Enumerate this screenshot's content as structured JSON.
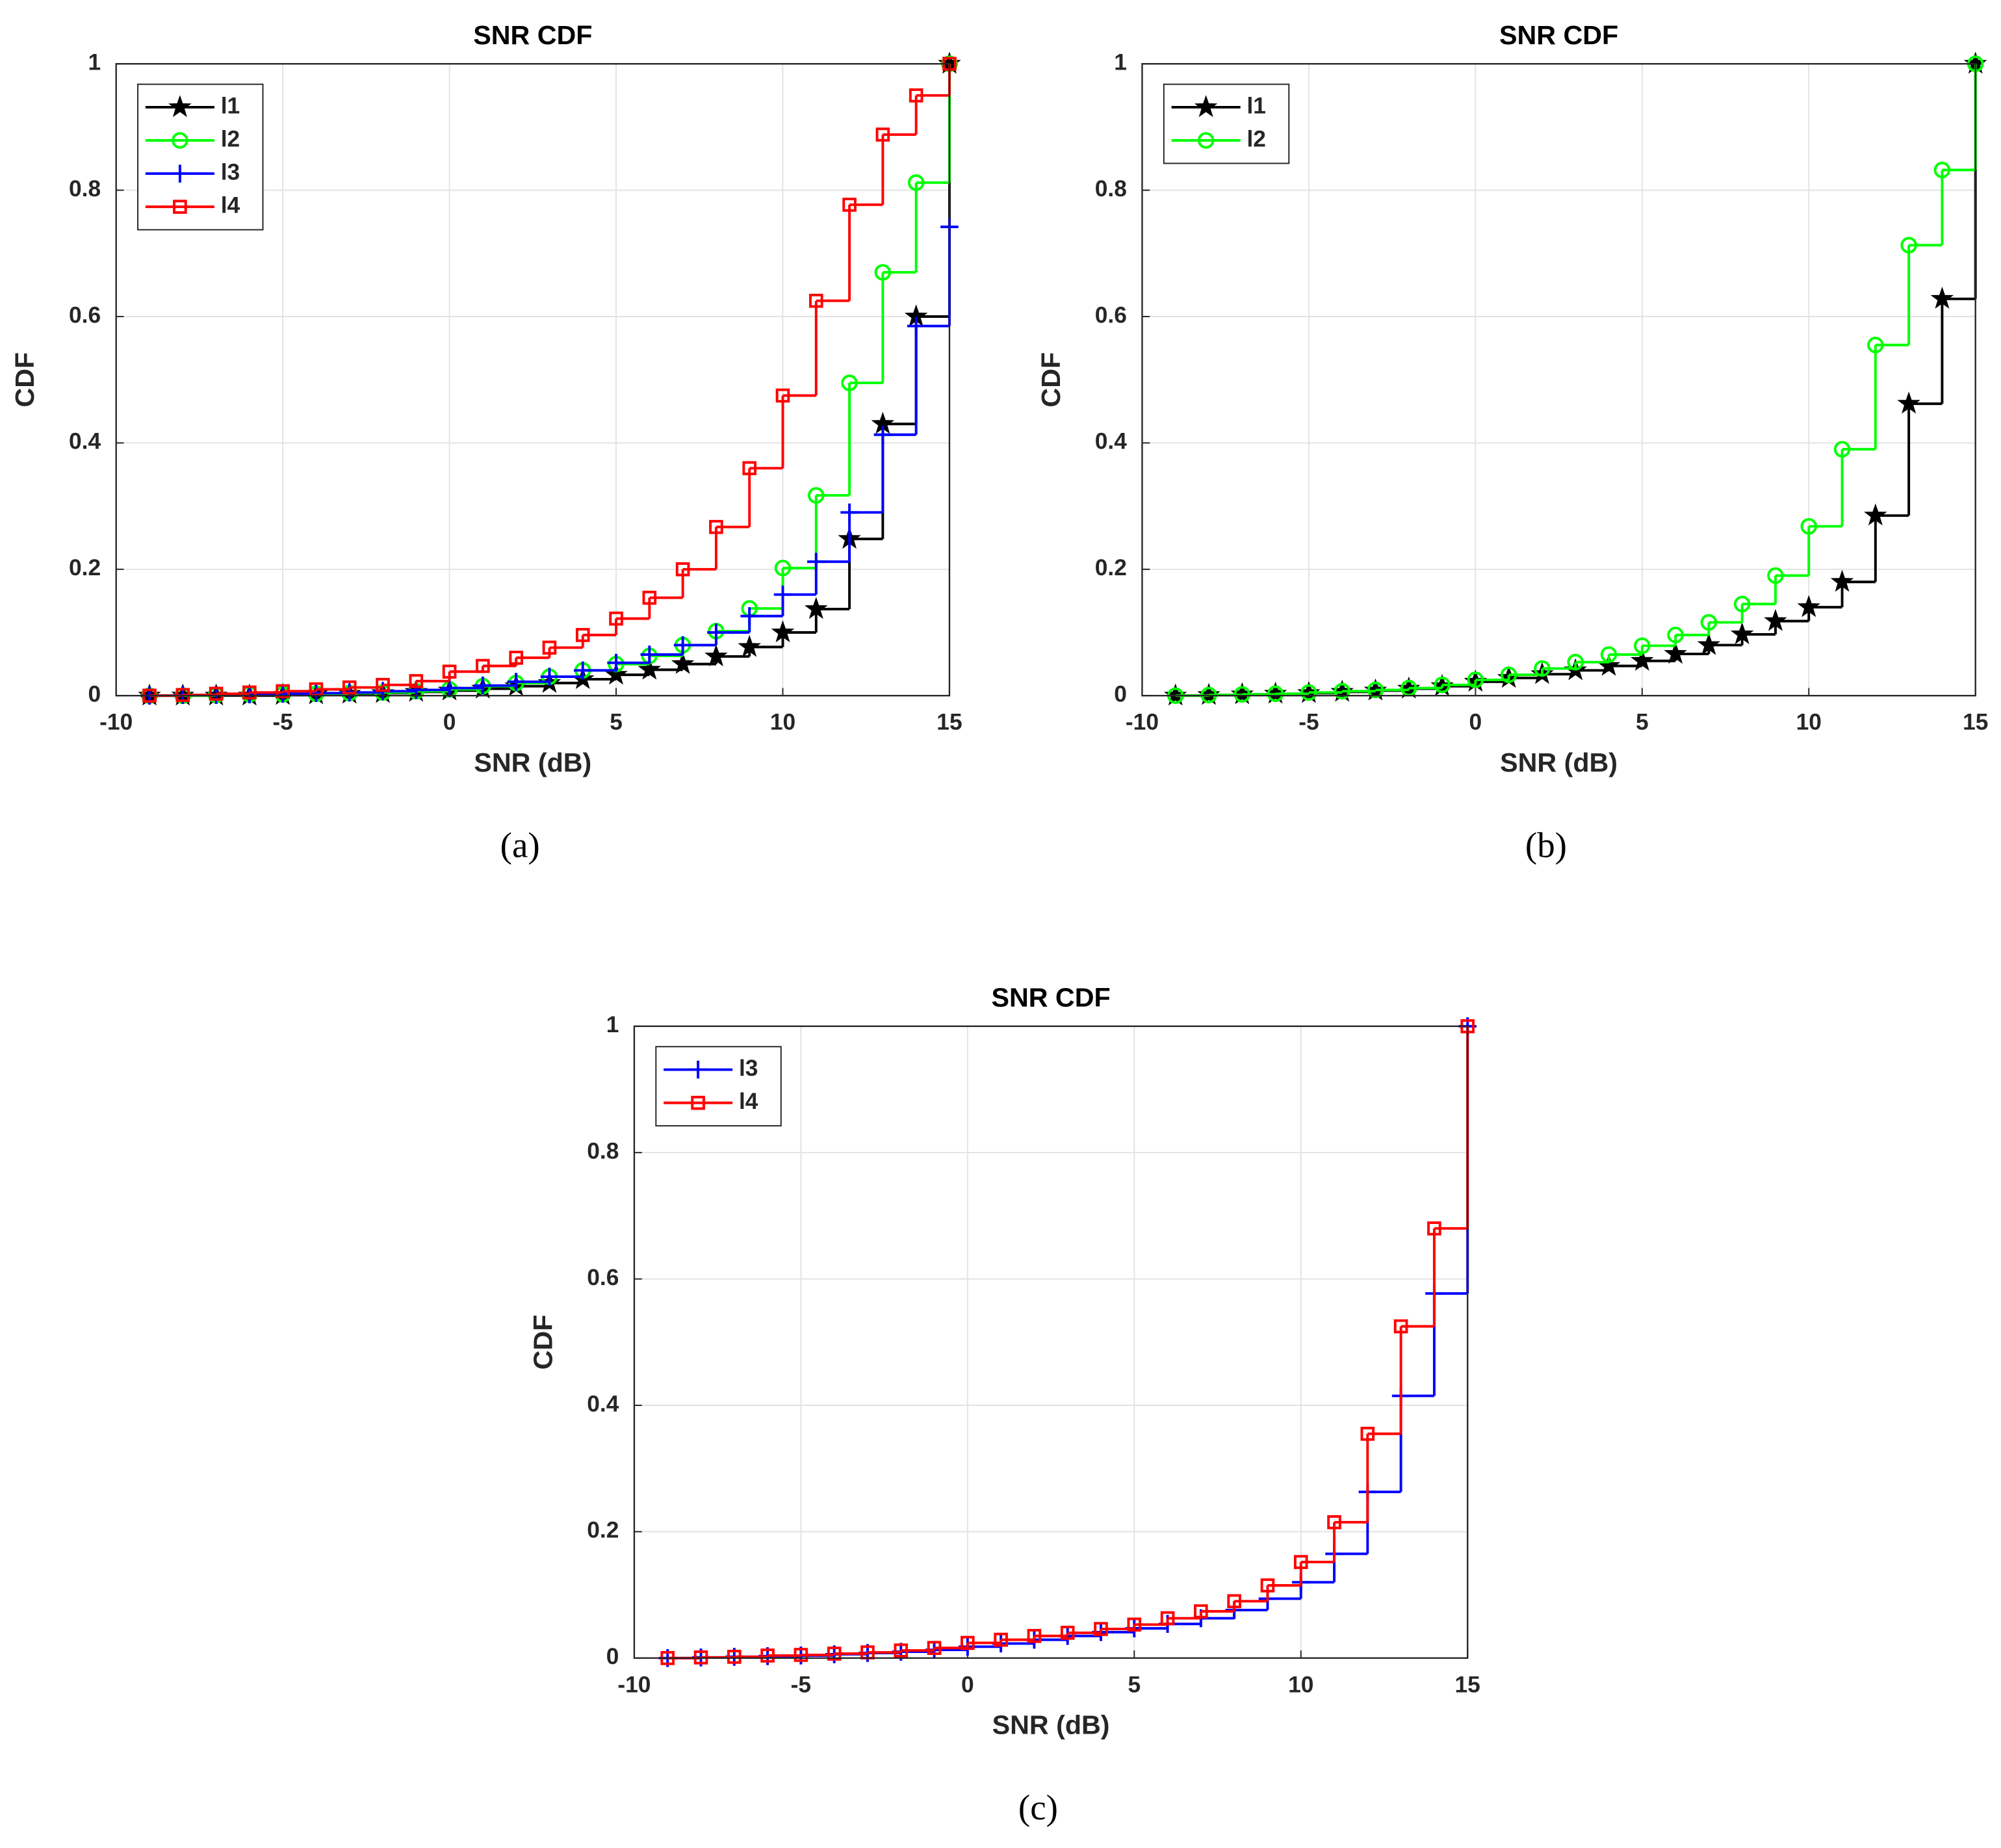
{
  "chart_data": [
    {
      "type": "line",
      "step": true,
      "title": "SNR CDF",
      "xlabel": "SNR (dB)",
      "ylabel": "CDF",
      "caption": "(a)",
      "x": [
        -9,
        -8,
        -7,
        -6,
        -5,
        -4,
        -3,
        -2,
        -1,
        0,
        1,
        2,
        3,
        4,
        5,
        6,
        7,
        8,
        9,
        10,
        11,
        12,
        13,
        14,
        15
      ],
      "xlim": [
        -10,
        15
      ],
      "xticks": [
        -10,
        -5,
        0,
        5,
        10,
        15
      ],
      "ylim": [
        0,
        1
      ],
      "yticks": [
        0,
        0.2,
        0.4,
        0.6,
        0.8,
        1
      ],
      "grid": true,
      "legend": "top-left",
      "series": [
        {
          "name": "l1",
          "color": "#000000",
          "marker": "star",
          "values": [
            0,
            0,
            0,
            0,
            0.001,
            0.002,
            0.003,
            0.004,
            0.006,
            0.008,
            0.011,
            0.015,
            0.02,
            0.026,
            0.033,
            0.041,
            0.05,
            0.062,
            0.077,
            0.1,
            0.137,
            0.248,
            0.43,
            0.6,
            1
          ]
        },
        {
          "name": "l2",
          "color": "#00ff00",
          "marker": "circle",
          "values": [
            0,
            0,
            0.001,
            0.002,
            0.002,
            0.003,
            0.004,
            0.005,
            0.007,
            0.01,
            0.015,
            0.02,
            0.03,
            0.04,
            0.05,
            0.063,
            0.08,
            0.102,
            0.138,
            0.202,
            0.317,
            0.495,
            0.67,
            0.812,
            1
          ]
        },
        {
          "name": "l3",
          "color": "#0000ff",
          "marker": "plus",
          "values": [
            0,
            0.001,
            0.001,
            0.002,
            0.003,
            0.004,
            0.005,
            0.007,
            0.009,
            0.012,
            0.016,
            0.022,
            0.03,
            0.04,
            0.052,
            0.065,
            0.08,
            0.1,
            0.126,
            0.16,
            0.212,
            0.29,
            0.413,
            0.585,
            0.742
          ]
        },
        {
          "name": "l4",
          "color": "#ff0000",
          "marker": "square",
          "values": [
            0,
            0.001,
            0.003,
            0.005,
            0.007,
            0.01,
            0.013,
            0.017,
            0.023,
            0.038,
            0.047,
            0.06,
            0.076,
            0.096,
            0.122,
            0.155,
            0.2,
            0.267,
            0.36,
            0.475,
            0.625,
            0.777,
            0.888,
            0.95,
            1
          ]
        }
      ]
    },
    {
      "type": "line",
      "step": true,
      "title": "SNR CDF",
      "xlabel": "SNR (dB)",
      "ylabel": "CDF",
      "caption": "(b)",
      "x": [
        -9,
        -8,
        -7,
        -6,
        -5,
        -4,
        -3,
        -2,
        -1,
        0,
        1,
        2,
        3,
        4,
        5,
        6,
        7,
        8,
        9,
        10,
        11,
        12,
        13,
        14,
        15
      ],
      "xlim": [
        -10,
        15
      ],
      "xticks": [
        -10,
        -5,
        0,
        5,
        10,
        15
      ],
      "ylim": [
        0,
        1
      ],
      "yticks": [
        0,
        0.2,
        0.4,
        0.6,
        0.8,
        1
      ],
      "grid": true,
      "legend": "top-left",
      "series": [
        {
          "name": "l1",
          "color": "#000000",
          "marker": "star",
          "values": [
            0,
            0.001,
            0.002,
            0.003,
            0.004,
            0.006,
            0.008,
            0.011,
            0.015,
            0.022,
            0.028,
            0.034,
            0.04,
            0.047,
            0.055,
            0.066,
            0.08,
            0.097,
            0.118,
            0.14,
            0.18,
            0.285,
            0.462,
            0.628,
            1
          ]
        },
        {
          "name": "l2",
          "color": "#00ff00",
          "marker": "circle",
          "values": [
            0,
            0.001,
            0.002,
            0.003,
            0.005,
            0.007,
            0.009,
            0.012,
            0.017,
            0.025,
            0.033,
            0.043,
            0.053,
            0.065,
            0.079,
            0.096,
            0.116,
            0.145,
            0.19,
            0.268,
            0.39,
            0.555,
            0.713,
            0.832,
            1
          ]
        }
      ]
    },
    {
      "type": "line",
      "step": true,
      "title": "SNR CDF",
      "xlabel": "SNR (dB)",
      "ylabel": "CDF",
      "caption": "(c)",
      "x": [
        -9,
        -8,
        -7,
        -6,
        -5,
        -4,
        -3,
        -2,
        -1,
        0,
        1,
        2,
        3,
        4,
        5,
        6,
        7,
        8,
        9,
        10,
        11,
        12,
        13,
        14,
        15
      ],
      "xlim": [
        -10,
        15
      ],
      "xticks": [
        -10,
        -5,
        0,
        5,
        10,
        15
      ],
      "ylim": [
        0,
        1
      ],
      "yticks": [
        0,
        0.2,
        0.4,
        0.6,
        0.8,
        1
      ],
      "grid": true,
      "legend": "top-left",
      "series": [
        {
          "name": "l3",
          "color": "#0000ff",
          "marker": "plus",
          "values": [
            0,
            0.001,
            0.002,
            0.003,
            0.004,
            0.006,
            0.008,
            0.01,
            0.013,
            0.018,
            0.023,
            0.029,
            0.035,
            0.041,
            0.047,
            0.054,
            0.063,
            0.076,
            0.094,
            0.12,
            0.165,
            0.263,
            0.415,
            0.577,
            1
          ]
        },
        {
          "name": "l4",
          "color": "#ff0000",
          "marker": "square",
          "values": [
            0,
            0.001,
            0.002,
            0.004,
            0.005,
            0.007,
            0.009,
            0.012,
            0.016,
            0.024,
            0.029,
            0.035,
            0.04,
            0.046,
            0.053,
            0.063,
            0.074,
            0.09,
            0.115,
            0.152,
            0.215,
            0.355,
            0.525,
            0.68,
            1
          ]
        }
      ]
    }
  ]
}
